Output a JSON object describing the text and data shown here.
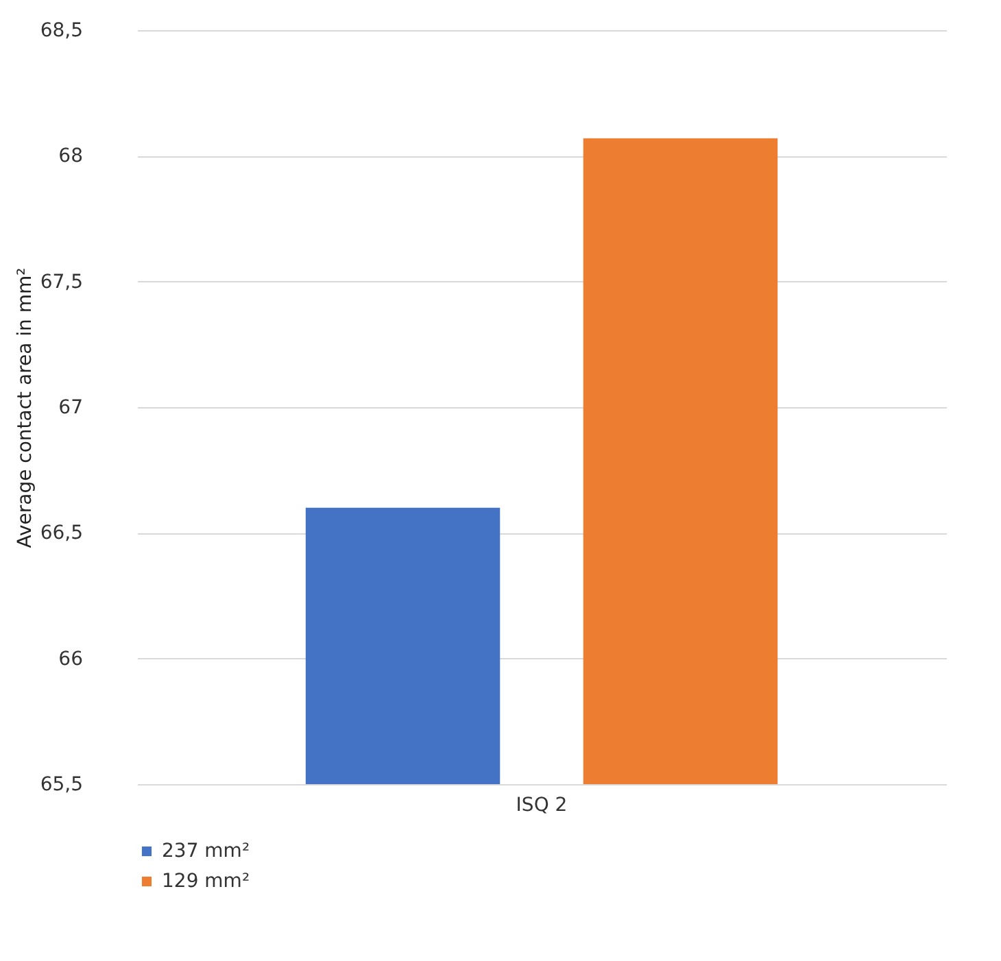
{
  "chart_data": {
    "type": "bar",
    "ylabel": "Average contact area in mm²",
    "categories": [
      "ISQ 2"
    ],
    "series": [
      {
        "name": "237 mm²",
        "color": "#4472c4",
        "values": [
          66.6
        ]
      },
      {
        "name": "129 mm²",
        "color": "#ed7d31",
        "values": [
          68.07
        ]
      }
    ],
    "ylim": [
      65.5,
      68.5
    ],
    "yticks": [
      {
        "value": 65.5,
        "label": "65,5"
      },
      {
        "value": 66,
        "label": "66"
      },
      {
        "value": 66.5,
        "label": "66,5"
      },
      {
        "value": 67,
        "label": "67"
      },
      {
        "value": 67.5,
        "label": "67,5"
      },
      {
        "value": 68,
        "label": "68"
      },
      {
        "value": 68.5,
        "label": "68,5"
      }
    ],
    "grid": "y",
    "legend": "bottom left"
  }
}
